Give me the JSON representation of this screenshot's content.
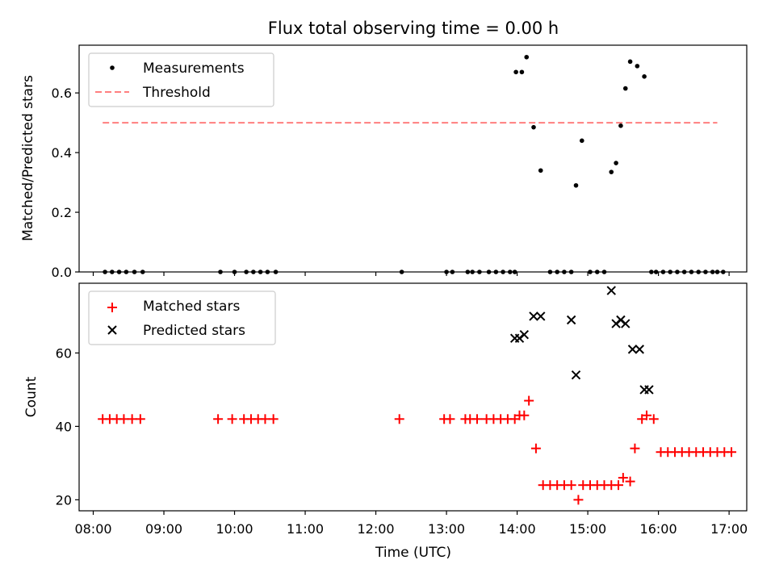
{
  "colors": {
    "measurements": "#000000",
    "threshold": "#ff7f7f",
    "matched": "#ff0000",
    "predicted": "#000000"
  },
  "chart_data": [
    {
      "type": "scatter",
      "title": "Flux total observing time = 0.00 h",
      "xlabel": "",
      "ylabel": "Matched/Predicted stars",
      "xlim": [
        "07:48",
        "17:15"
      ],
      "ylim": [
        0,
        0.76
      ],
      "yticks": [
        0.0,
        0.2,
        0.4,
        0.6
      ],
      "ytick_labels": [
        "0.0",
        "0.2",
        "0.4",
        "0.6"
      ],
      "grid": false,
      "legend_position": "top-left",
      "legend": [
        "Measurements",
        "Threshold"
      ],
      "threshold": {
        "name": "Threshold",
        "y": 0.5,
        "x_range": [
          "08:08",
          "16:50"
        ]
      },
      "series": [
        {
          "name": "Measurements",
          "x": [
            "08:10",
            "08:16",
            "08:22",
            "08:28",
            "08:35",
            "08:42",
            "09:48",
            "10:00",
            "10:10",
            "10:16",
            "10:22",
            "10:28",
            "10:35",
            "12:22",
            "13:00",
            "13:05",
            "13:18",
            "13:22",
            "13:28",
            "13:36",
            "13:42",
            "13:48",
            "13:54",
            "13:58",
            "13:59",
            "14:04",
            "14:08",
            "14:14",
            "14:20",
            "14:28",
            "14:34",
            "14:40",
            "14:46",
            "14:50",
            "14:55",
            "15:02",
            "15:08",
            "15:14",
            "15:20",
            "15:24",
            "15:28",
            "15:32",
            "15:36",
            "15:42",
            "15:48",
            "15:54",
            "15:58",
            "16:04",
            "16:10",
            "16:16",
            "16:22",
            "16:28",
            "16:34",
            "16:40",
            "16:46",
            "16:50",
            "16:55"
          ],
          "y": [
            0,
            0,
            0,
            0,
            0,
            0,
            0,
            0,
            0,
            0,
            0,
            0,
            0,
            0,
            0,
            0,
            0,
            0,
            0,
            0,
            0,
            0,
            0,
            0,
            0.67,
            0.67,
            0.72,
            0.485,
            0.34,
            0,
            0,
            0,
            0,
            0.29,
            0.44,
            0,
            0,
            0,
            0.335,
            0.365,
            0.49,
            0.615,
            0.705,
            0.69,
            0.655,
            0,
            0,
            0,
            0,
            0,
            0,
            0,
            0,
            0,
            0,
            0,
            0
          ]
        }
      ]
    },
    {
      "type": "scatter",
      "title": "",
      "xlabel": "Time (UTC)",
      "ylabel": "Count",
      "xlim": [
        "07:48",
        "17:15"
      ],
      "ylim": [
        17,
        79
      ],
      "yticks": [
        20,
        40,
        60
      ],
      "ytick_labels": [
        "20",
        "40",
        "60"
      ],
      "xticks": [
        "08:00",
        "09:00",
        "10:00",
        "11:00",
        "12:00",
        "13:00",
        "14:00",
        "15:00",
        "16:00",
        "17:00"
      ],
      "grid": false,
      "legend_position": "top-left",
      "legend": [
        "Matched stars",
        "Predicted stars"
      ],
      "series": [
        {
          "name": "Matched stars",
          "x": [
            "08:08",
            "08:14",
            "08:20",
            "08:26",
            "08:33",
            "08:40",
            "09:46",
            "09:58",
            "10:08",
            "10:14",
            "10:20",
            "10:26",
            "10:33",
            "12:20",
            "12:58",
            "13:03",
            "13:16",
            "13:20",
            "13:26",
            "13:34",
            "13:40",
            "13:46",
            "13:52",
            "13:58",
            "14:02",
            "14:06",
            "14:10",
            "14:16",
            "14:22",
            "14:28",
            "14:34",
            "14:40",
            "14:46",
            "14:52",
            "14:56",
            "15:02",
            "15:08",
            "15:14",
            "15:20",
            "15:26",
            "15:30",
            "15:36",
            "15:40",
            "15:46",
            "15:50",
            "15:56",
            "16:02",
            "16:08",
            "16:14",
            "16:20",
            "16:26",
            "16:32",
            "16:38",
            "16:44",
            "16:50",
            "16:56",
            "17:02"
          ],
          "y": [
            42,
            42,
            42,
            42,
            42,
            42,
            42,
            42,
            42,
            42,
            42,
            42,
            42,
            42,
            42,
            42,
            42,
            42,
            42,
            42,
            42,
            42,
            42,
            42,
            43,
            43,
            47,
            34,
            24,
            24,
            24,
            24,
            24,
            20,
            24,
            24,
            24,
            24,
            24,
            24,
            26,
            25,
            34,
            42,
            43,
            42,
            33,
            33,
            33,
            33,
            33,
            33,
            33,
            33,
            33,
            33,
            33
          ]
        },
        {
          "name": "Predicted stars",
          "x": [
            "13:58",
            "14:02",
            "14:06",
            "14:14",
            "14:20",
            "14:46",
            "14:50",
            "15:20",
            "15:24",
            "15:28",
            "15:32",
            "15:38",
            "15:44",
            "15:48",
            "15:52"
          ],
          "y": [
            64,
            64,
            65,
            70,
            70,
            69,
            54,
            77,
            68,
            69,
            68,
            61,
            61,
            50,
            50
          ]
        }
      ]
    }
  ]
}
